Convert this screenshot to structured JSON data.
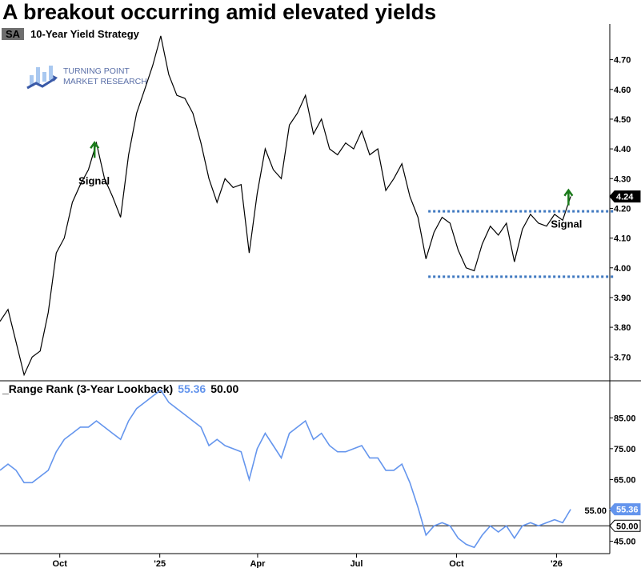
{
  "title": "A breakout occurring amid elevated yields",
  "logo_text": [
    "TURNING POINT",
    "MARKET RESEARCH"
  ],
  "colors": {
    "price": "#000000",
    "rank": "#6495ed",
    "signal": "#1a7a1a",
    "dashed": "#3f78c0"
  },
  "chart_data": [
    {
      "type": "line",
      "legend": {
        "badge": "SA",
        "name": "10-Year Yield  Strategy"
      },
      "x_range": [
        "2024-08-07",
        "2026-02-19"
      ],
      "series_start": "2024-08-07",
      "series_end": "2026-01-14",
      "values": [
        3.82,
        3.86,
        3.75,
        3.64,
        3.7,
        3.72,
        3.85,
        4.05,
        4.1,
        4.22,
        4.28,
        4.33,
        4.42,
        4.3,
        4.24,
        4.17,
        4.38,
        4.52,
        4.6,
        4.68,
        4.78,
        4.65,
        4.58,
        4.57,
        4.52,
        4.42,
        4.3,
        4.22,
        4.3,
        4.27,
        4.28,
        4.05,
        4.25,
        4.4,
        4.33,
        4.3,
        4.48,
        4.52,
        4.58,
        4.45,
        4.5,
        4.4,
        4.38,
        4.42,
        4.4,
        4.46,
        4.38,
        4.4,
        4.26,
        4.3,
        4.35,
        4.24,
        4.17,
        4.03,
        4.12,
        4.17,
        4.15,
        4.06,
        4.0,
        3.99,
        4.08,
        4.14,
        4.11,
        4.15,
        4.02,
        4.13,
        4.18,
        4.15,
        4.14,
        4.18,
        4.16,
        4.24
      ],
      "ylim": [
        3.62,
        4.82
      ],
      "yticks": [
        "3.70",
        "3.80",
        "3.90",
        "4.00",
        "4.10",
        "4.20",
        "4.30",
        "4.40",
        "4.50",
        "4.60",
        "4.70"
      ],
      "last_value_label": "4.24",
      "range_lines": [
        {
          "value": 4.19,
          "from": "2025-09-05"
        },
        {
          "value": 3.97,
          "from": "2025-09-05"
        }
      ],
      "signals": [
        {
          "date": "2024-11-02",
          "value": 4.37,
          "label": "Signal"
        },
        {
          "date": "2026-01-12",
          "value": 4.21,
          "label": "Signal"
        }
      ]
    },
    {
      "type": "line",
      "legend": {
        "name": "_Range Rank (3-Year Lookback)",
        "value": "55.36",
        "ref_value": "50.00"
      },
      "x_range": [
        "2024-08-07",
        "2026-02-19"
      ],
      "series_start": "2024-08-07",
      "series_end": "2026-01-14",
      "values": [
        68,
        70,
        68,
        64,
        64,
        66,
        68,
        74,
        78,
        80,
        82,
        82,
        84,
        82,
        80,
        78,
        84,
        88,
        90,
        92,
        94,
        90,
        88,
        86,
        84,
        82,
        76,
        78,
        76,
        75,
        74,
        65,
        75,
        80,
        76,
        72,
        80,
        82,
        84,
        78,
        80,
        76,
        74,
        74,
        75,
        76,
        72,
        72,
        68,
        68,
        70,
        64,
        56,
        47,
        50,
        51,
        50,
        46,
        44,
        43,
        47,
        50,
        48,
        50,
        46,
        50,
        51,
        50,
        51,
        52,
        51,
        55.36
      ],
      "ylim": [
        41,
        97
      ],
      "yticks": [
        "45.00",
        "55.00",
        "65.00",
        "75.00",
        "85.00"
      ],
      "reference_line": 50,
      "last_value_label": "55.36",
      "ref_label": "50.00"
    }
  ],
  "xaxis": {
    "ticks": [
      {
        "date": "2024-10-01",
        "label": "Oct"
      },
      {
        "date": "2025-01-01",
        "label": "'25"
      },
      {
        "date": "2025-04-01",
        "label": "Apr"
      },
      {
        "date": "2025-07-01",
        "label": "Jul"
      },
      {
        "date": "2025-10-01",
        "label": "Oct"
      },
      {
        "date": "2026-01-01",
        "label": "'26"
      }
    ]
  }
}
